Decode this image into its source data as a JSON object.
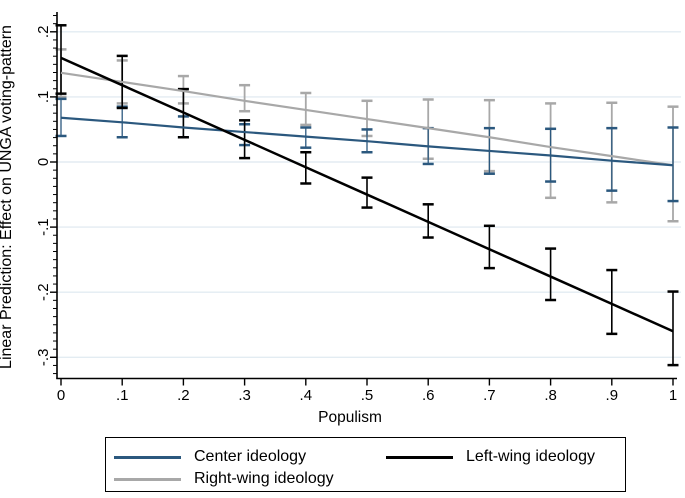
{
  "chart_data": {
    "type": "line",
    "title": "",
    "xlabel": "Populism",
    "ylabel": "Linear Prediction: Effect on UNGA voting-pattern",
    "grid": true,
    "gridline_color": "#e3ecf2",
    "axis_color": "#000000",
    "xlim": [
      -0.007,
      1.015
    ],
    "ylim": [
      -0.332,
      0.229
    ],
    "x_ticks": [
      "0",
      ".1",
      ".2",
      ".3",
      ".4",
      ".5",
      ".6",
      ".7",
      ".8",
      ".9",
      "1"
    ],
    "x_tick_values": [
      0,
      0.1,
      0.2,
      0.3,
      0.4,
      0.5,
      0.6,
      0.7,
      0.8,
      0.9,
      1
    ],
    "y_ticks": [
      ".2",
      ".1",
      "0",
      "-.1",
      "-.2",
      "-.3"
    ],
    "y_tick_values": [
      0.2,
      0.1,
      0,
      -0.1,
      -0.2,
      -0.3
    ],
    "y_minor_tick_step": 0.0125,
    "x": [
      0,
      0.1,
      0.2,
      0.3,
      0.4,
      0.5,
      0.6,
      0.7,
      0.8,
      0.9,
      1
    ],
    "series": [
      {
        "name": "Center ideology",
        "color": "#2b587e",
        "values": [
          0.068,
          0.061,
          0.053,
          0.046,
          0.039,
          0.032,
          0.024,
          0.017,
          0.01,
          0.002,
          -0.005
        ],
        "ci_low": [
          0.04,
          0.038,
          0.038,
          0.026,
          0.022,
          0.015,
          -0.003,
          -0.018,
          -0.03,
          -0.044,
          -0.06
        ],
        "ci_high": [
          0.097,
          0.085,
          0.07,
          0.058,
          0.053,
          0.05,
          0.052,
          0.052,
          0.051,
          0.052,
          0.053
        ]
      },
      {
        "name": "Left-wing ideology",
        "color": "#000000",
        "values": [
          0.16,
          0.118,
          0.076,
          0.034,
          -0.008,
          -0.05,
          -0.092,
          -0.134,
          -0.176,
          -0.218,
          -0.26
        ],
        "ci_low": [
          0.105,
          0.083,
          0.038,
          0.006,
          -0.033,
          -0.07,
          -0.116,
          -0.163,
          -0.212,
          -0.264,
          -0.312
        ],
        "ci_high": [
          0.21,
          0.163,
          0.112,
          0.064,
          0.015,
          -0.024,
          -0.065,
          -0.098,
          -0.133,
          -0.166,
          -0.199
        ]
      },
      {
        "name": "Right-wing ideology",
        "color": "#a8a8a8",
        "values": [
          0.137,
          0.123,
          0.109,
          0.094,
          0.08,
          0.066,
          0.052,
          0.038,
          0.023,
          0.009,
          -0.005
        ],
        "ci_low": [
          0.1,
          0.09,
          0.09,
          0.078,
          0.057,
          0.04,
          0.005,
          -0.014,
          -0.055,
          -0.062,
          -0.091
        ],
        "ci_high": [
          0.173,
          0.156,
          0.132,
          0.118,
          0.106,
          0.094,
          0.096,
          0.095,
          0.09,
          0.091,
          0.085
        ]
      }
    ],
    "legend": {
      "position": "bottom",
      "items": [
        "Center ideology",
        "Left-wing ideology",
        "Right-wing ideology"
      ]
    }
  }
}
